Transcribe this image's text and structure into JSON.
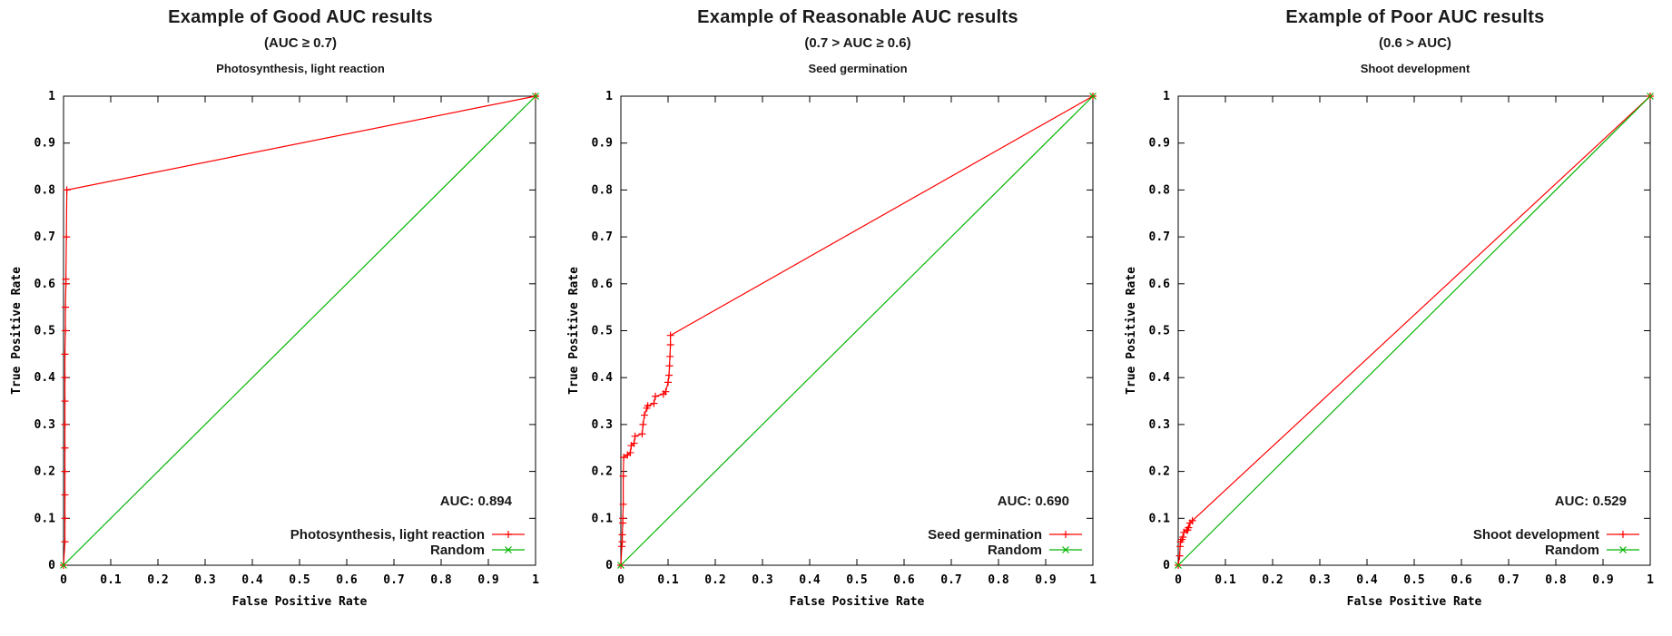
{
  "figure": {
    "background": "#ffffff",
    "axis_color": "#000000",
    "roc_color": "#ff0000",
    "random_color": "#00b400"
  },
  "chart_data": [
    {
      "type": "line",
      "title": "Example of  Good AUC results",
      "subtitle": "(AUC ≥ 0.7)",
      "chart_title": "Photosynthesis, light reaction",
      "xlabel": "False Positive Rate",
      "ylabel": "True Positive Rate",
      "xlim": [
        0,
        1
      ],
      "ylim": [
        0,
        1
      ],
      "xtick_labels": [
        "0",
        "0.1",
        "0.2",
        "0.3",
        "0.4",
        "0.5",
        "0.6",
        "0.7",
        "0.8",
        "0.9",
        "1"
      ],
      "ytick_labels": [
        "0",
        "0.1",
        "0.2",
        "0.3",
        "0.4",
        "0.5",
        "0.6",
        "0.7",
        "0.8",
        "0.9",
        "1"
      ],
      "grid": false,
      "legend_position": "bottom-right",
      "annotation": "AUC: 0.894",
      "auc": 0.894,
      "series": [
        {
          "name": "Photosynthesis, light reaction",
          "color": "#ff0000",
          "marker": "plus",
          "markers_every_point": true,
          "points": [
            [
              0,
              0
            ],
            [
              0.003,
              0.05
            ],
            [
              0.003,
              0.1
            ],
            [
              0.003,
              0.15
            ],
            [
              0.003,
              0.2
            ],
            [
              0.003,
              0.25
            ],
            [
              0.003,
              0.3
            ],
            [
              0.003,
              0.35
            ],
            [
              0.003,
              0.4
            ],
            [
              0.003,
              0.45
            ],
            [
              0.004,
              0.5
            ],
            [
              0.004,
              0.55
            ],
            [
              0.005,
              0.6
            ],
            [
              0.005,
              0.61
            ],
            [
              0.006,
              0.7
            ],
            [
              0.007,
              0.8
            ],
            [
              1,
              1
            ]
          ]
        },
        {
          "name": "Random",
          "color": "#00b400",
          "marker": "cross",
          "markers_every_point": true,
          "points": [
            [
              0,
              0
            ],
            [
              1,
              1
            ]
          ]
        }
      ]
    },
    {
      "type": "line",
      "title": "Example of Reasonable AUC results",
      "subtitle": "(0.7 > AUC ≥ 0.6)",
      "chart_title": "Seed germination",
      "xlabel": "False Positive Rate",
      "ylabel": "True Positive Rate",
      "xlim": [
        0,
        1
      ],
      "ylim": [
        0,
        1
      ],
      "xtick_labels": [
        "0",
        "0.1",
        "0.2",
        "0.3",
        "0.4",
        "0.5",
        "0.6",
        "0.7",
        "0.8",
        "0.9",
        "1"
      ],
      "ytick_labels": [
        "0",
        "0.1",
        "0.2",
        "0.3",
        "0.4",
        "0.5",
        "0.6",
        "0.7",
        "0.8",
        "0.9",
        "1"
      ],
      "grid": false,
      "legend_position": "bottom-right",
      "annotation": "AUC: 0.690",
      "auc": 0.69,
      "series": [
        {
          "name": "Seed germination",
          "color": "#ff0000",
          "marker": "plus",
          "markers_every_point": true,
          "points": [
            [
              0,
              0
            ],
            [
              0.002,
              0.04
            ],
            [
              0.003,
              0.05
            ],
            [
              0.003,
              0.065
            ],
            [
              0.004,
              0.09
            ],
            [
              0.004,
              0.1
            ],
            [
              0.005,
              0.13
            ],
            [
              0.005,
              0.19
            ],
            [
              0.006,
              0.23
            ],
            [
              0.014,
              0.235
            ],
            [
              0.02,
              0.24
            ],
            [
              0.022,
              0.255
            ],
            [
              0.028,
              0.26
            ],
            [
              0.03,
              0.275
            ],
            [
              0.045,
              0.28
            ],
            [
              0.047,
              0.3
            ],
            [
              0.05,
              0.32
            ],
            [
              0.055,
              0.335
            ],
            [
              0.057,
              0.34
            ],
            [
              0.07,
              0.345
            ],
            [
              0.073,
              0.36
            ],
            [
              0.09,
              0.365
            ],
            [
              0.095,
              0.37
            ],
            [
              0.1,
              0.39
            ],
            [
              0.102,
              0.405
            ],
            [
              0.103,
              0.425
            ],
            [
              0.104,
              0.445
            ],
            [
              0.105,
              0.47
            ],
            [
              0.105,
              0.49
            ],
            [
              1,
              1
            ]
          ]
        },
        {
          "name": "Random",
          "color": "#00b400",
          "marker": "cross",
          "markers_every_point": true,
          "points": [
            [
              0,
              0
            ],
            [
              1,
              1
            ]
          ]
        }
      ]
    },
    {
      "type": "line",
      "title": "Example of  Poor AUC results",
      "subtitle": "(0.6 > AUC)",
      "chart_title": "Shoot development",
      "xlabel": "False Positive Rate",
      "ylabel": "True Positive Rate",
      "xlim": [
        0,
        1
      ],
      "ylim": [
        0,
        1
      ],
      "xtick_labels": [
        "0",
        "0.1",
        "0.2",
        "0.3",
        "0.4",
        "0.5",
        "0.6",
        "0.7",
        "0.8",
        "0.9",
        "1"
      ],
      "ytick_labels": [
        "0",
        "0.1",
        "0.2",
        "0.3",
        "0.4",
        "0.5",
        "0.6",
        "0.7",
        "0.8",
        "0.9",
        "1"
      ],
      "grid": false,
      "legend_position": "bottom-right",
      "annotation": "AUC: 0.529",
      "auc": 0.529,
      "series": [
        {
          "name": "Shoot development",
          "color": "#ff0000",
          "marker": "plus",
          "markers_every_point": true,
          "points": [
            [
              0,
              0
            ],
            [
              0.003,
              0.02
            ],
            [
              0.004,
              0.04
            ],
            [
              0.005,
              0.05
            ],
            [
              0.008,
              0.055
            ],
            [
              0.01,
              0.06
            ],
            [
              0.012,
              0.07
            ],
            [
              0.018,
              0.075
            ],
            [
              0.02,
              0.075
            ],
            [
              0.022,
              0.08
            ],
            [
              0.025,
              0.09
            ],
            [
              0.03,
              0.095
            ],
            [
              1,
              1
            ]
          ]
        },
        {
          "name": "Random",
          "color": "#00b400",
          "marker": "cross",
          "markers_every_point": true,
          "points": [
            [
              0,
              0
            ],
            [
              1,
              1
            ]
          ]
        }
      ]
    }
  ]
}
